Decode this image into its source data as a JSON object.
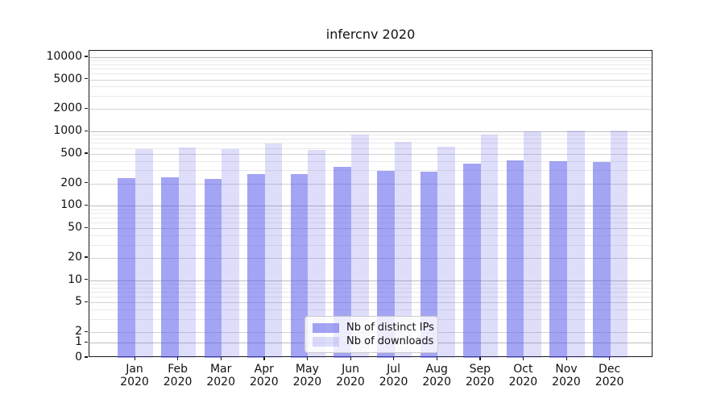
{
  "title": "infercnv 2020",
  "chart_data": {
    "type": "bar",
    "categories": [
      "Jan 2020",
      "Feb 2020",
      "Mar 2020",
      "Apr 2020",
      "May 2020",
      "Jun 2020",
      "Jul 2020",
      "Aug 2020",
      "Sep 2020",
      "Oct 2020",
      "Nov 2020",
      "Dec 2020"
    ],
    "series": [
      {
        "name": "Nb of distinct IPs",
        "color": "rgba(90,90,235,0.55)",
        "color_hex_on_white": "#a4a4f4",
        "values": [
          235,
          240,
          228,
          268,
          266,
          334,
          295,
          285,
          366,
          410,
          402,
          388
        ]
      },
      {
        "name": "Nb of downloads",
        "color": "rgba(90,90,235,0.20)",
        "color_hex_on_white": "#dedefb",
        "values": [
          580,
          610,
          580,
          690,
          560,
          900,
          720,
          630,
          900,
          990,
          1020,
          1020
        ]
      }
    ],
    "yticks": [
      10000,
      5000,
      2000,
      1000,
      500,
      200,
      100,
      50,
      20,
      10,
      5,
      2,
      1,
      0
    ],
    "yscale": "symlog",
    "ylim": [
      0,
      12300
    ],
    "grid": "both",
    "legend_position": "lower center"
  }
}
